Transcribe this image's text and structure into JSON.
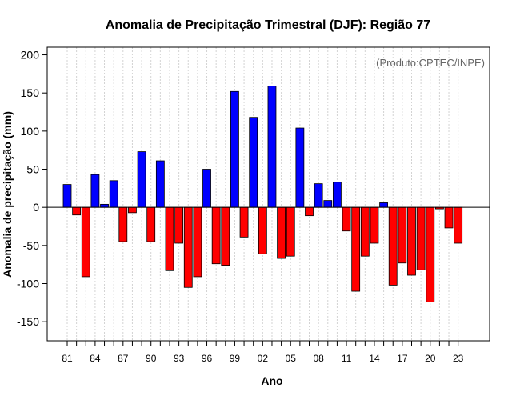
{
  "chart_data": {
    "type": "bar",
    "title": "Anomalia de Precipitação Trimestral (DJF): Região 77",
    "xlabel": "Ano",
    "ylabel": "Anomalia de precipitação (mm)",
    "annotation": "(Produto:CPTEC/INPE)",
    "ylim": [
      -175,
      210
    ],
    "yticks": [
      -150,
      -100,
      -50,
      0,
      50,
      100,
      150,
      200
    ],
    "xtick_labels": [
      "81",
      "84",
      "87",
      "90",
      "93",
      "96",
      "99",
      "02",
      "05",
      "08",
      "11",
      "14",
      "17",
      "20",
      "23"
    ],
    "grid": true,
    "colors": {
      "positive": "#0000ff",
      "negative": "#ff0000"
    },
    "categories": [
      "1981",
      "1982",
      "1983",
      "1984",
      "1985",
      "1986",
      "1987",
      "1988",
      "1989",
      "1990",
      "1991",
      "1992",
      "1993",
      "1994",
      "1995",
      "1996",
      "1997",
      "1998",
      "1999",
      "2000",
      "2001",
      "2002",
      "2003",
      "2004",
      "2005",
      "2006",
      "2007",
      "2008",
      "2009",
      "2010",
      "2011",
      "2012",
      "2013",
      "2014",
      "2015",
      "2016",
      "2017",
      "2018",
      "2019",
      "2020",
      "2021",
      "2022",
      "2023"
    ],
    "values": [
      30,
      -10,
      -91,
      43,
      4,
      35,
      -45,
      -7,
      73,
      -45,
      61,
      -83,
      -47,
      -105,
      -91,
      50,
      -74,
      -76,
      152,
      -39,
      118,
      -61,
      159,
      -67,
      -64,
      104,
      -11,
      31,
      9,
      33,
      -31,
      -110,
      -64,
      -47,
      6,
      -102,
      -73,
      -89,
      -82,
      -124,
      -2,
      -27,
      -47
    ]
  }
}
